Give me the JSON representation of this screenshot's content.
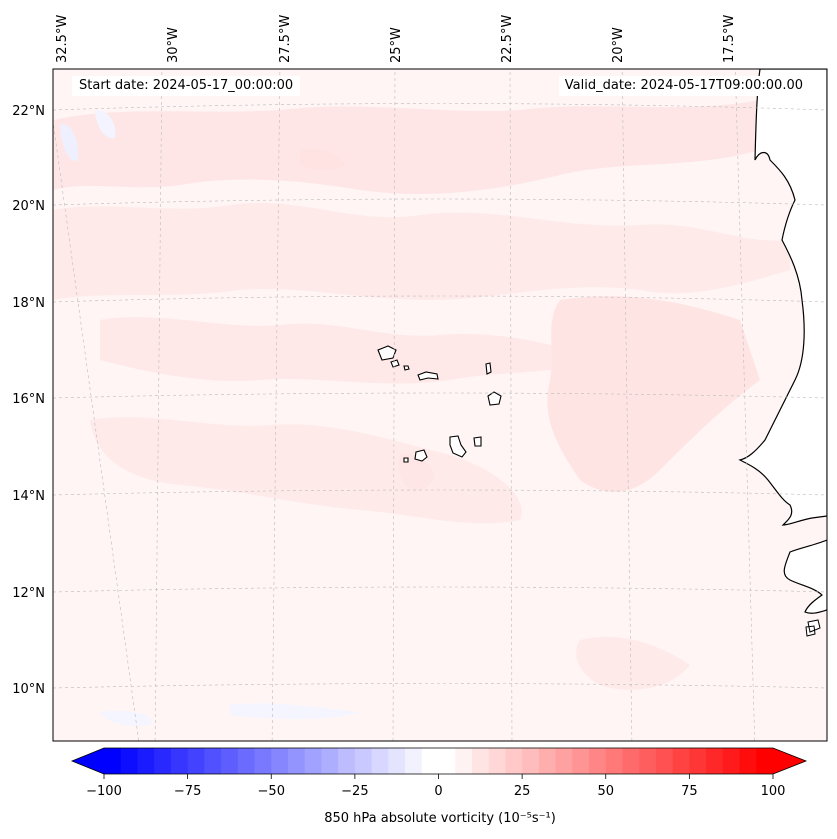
{
  "map": {
    "start_date": "Start date: 2024-05-17_00:00:00",
    "valid_date": "Valid_date: 2024-05-17T09:00:00.00",
    "longitude_labels": [
      "32.5°W",
      "30°W",
      "27.5°W",
      "25°W",
      "22.5°W",
      "20°W",
      "17.5°W"
    ],
    "latitude_labels": [
      "22°N",
      "20°N",
      "18°N",
      "16°N",
      "14°N",
      "12°N",
      "10°N"
    ],
    "field": "850 hPa absolute vorticity",
    "extend": "both",
    "colors": {
      "negative": "#0000ff",
      "zero": "#ffffff",
      "positive": "#ff0000",
      "land_outline": "#000000",
      "gridline": "#bbbbbb"
    }
  },
  "colorbar": {
    "label": "850 hPa absolute vorticity (10⁻⁵s⁻¹)",
    "ticks": [
      "−100",
      "−75",
      "−50",
      "−25",
      "0",
      "25",
      "50",
      "75",
      "100"
    ],
    "range": [
      -100,
      100
    ],
    "levels": 40
  }
}
